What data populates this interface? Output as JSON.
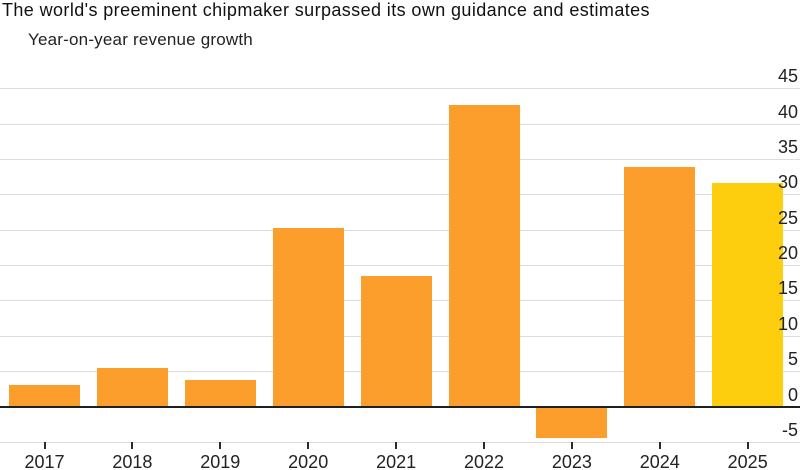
{
  "header": {
    "title": "The world's preeminent chipmaker surpassed its own guidance and estimates",
    "subtitle": "Year-on-year revenue growth"
  },
  "chart_data": {
    "type": "bar",
    "title": "The world's preeminent chipmaker surpassed its own guidance and estimates",
    "subtitle": "Year-on-year revenue growth",
    "unit": "%",
    "categories": [
      "2017",
      "2018",
      "2019",
      "2020",
      "2021",
      "2022",
      "2023",
      "2024",
      "2025"
    ],
    "values": [
      3.1,
      5.5,
      3.7,
      25.2,
      18.5,
      42.6,
      -4.5,
      33.9,
      31.6
    ],
    "highlight_index": 8,
    "yticks": [
      45,
      40,
      35,
      30,
      25,
      20,
      15,
      10,
      5,
      0,
      -5
    ],
    "ylim": [
      -6.5,
      49
    ],
    "grid": "horizontal",
    "legend": "none",
    "yaxis_side": "right"
  },
  "style": {
    "bar_color": "#FB9E2B",
    "highlight_color": "#FDCE0D",
    "gridline_color": "#DCDCDC",
    "zero_line_color": "#1F1F1F",
    "bottom_axis_color": "#DCDCDC",
    "tick_color": "#2B2B2B",
    "text_color": "#222222",
    "title_color": "#111111",
    "background": "#FFFFFF"
  }
}
